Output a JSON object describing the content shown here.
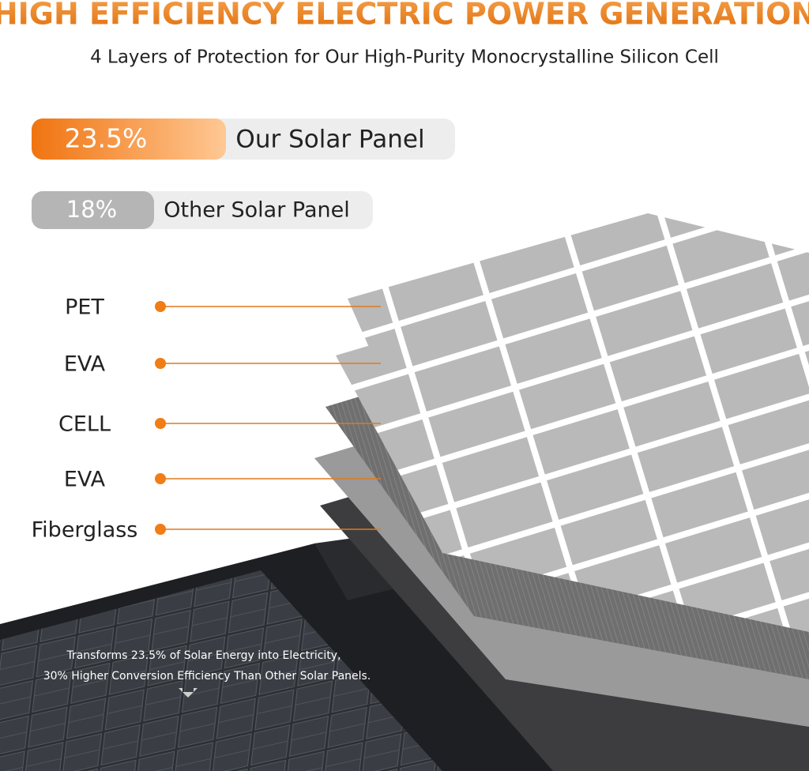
{
  "header": {
    "title": "HIGH EFFICIENCY ELECTRIC POWER GENERATION",
    "subtitle": "4 Layers of Protection for Our High-Purity Monocrystalline Silicon Cell"
  },
  "comparison": [
    {
      "value": "23.5%",
      "label": "Our Solar Panel"
    },
    {
      "value": "18%",
      "label": "Other Solar Panel"
    }
  ],
  "layers": [
    "PET",
    "EVA",
    "CELL",
    "EVA",
    "Fiberglass"
  ],
  "caption": [
    "Transforms 23.5% of Solar Energy into Electricity,",
    "30% Higher Conversion Efficiency Than Other Solar Panels."
  ]
}
